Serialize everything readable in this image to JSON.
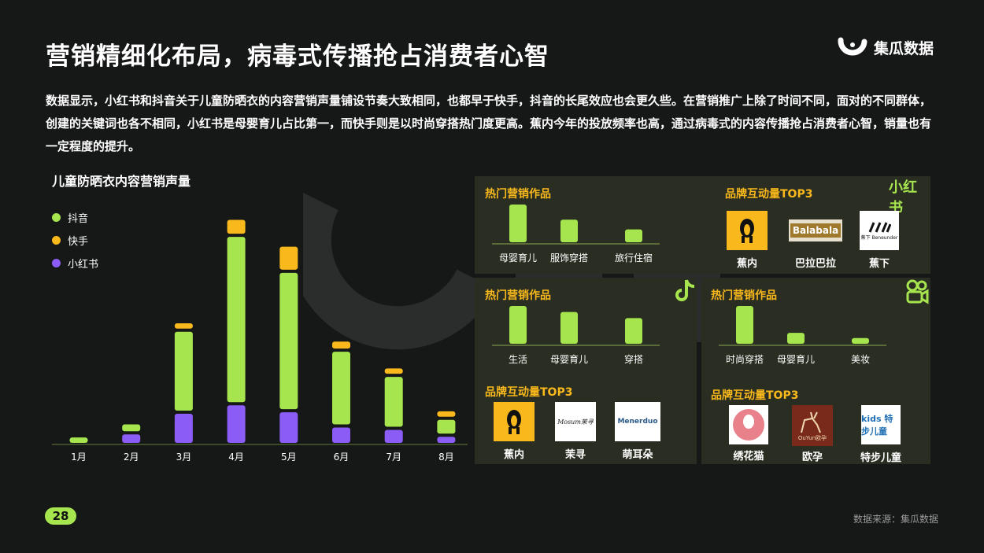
{
  "title": "营销精细化布局，病毒式传播抢占消费者心智",
  "logo": {
    "text": "集瓜数据"
  },
  "description": "数据显示，小红书和抖音关于儿童防晒衣的内容营销声量铺设节奏大致相同，也都早于快手，抖音的长尾效应也会更久些。在营销推广上除了时间不同，面对的不同群体，创建的关键词也各不相同，小红书是母婴育儿占比第一，而快手则是以时尚穿搭热门度更高。蕉内今年的投放频率也高，通过病毒式的内容传播抢占消费者心智，销量也有一定程度的提升。",
  "colors": {
    "douyin": "#a6e54e",
    "kuaishou": "#f9b81c",
    "xiaohongshu": "#8b5cf6",
    "panel": "#2a2e22",
    "accent": "#f9b81c"
  },
  "chart_data": [
    {
      "type": "bar",
      "stacked": true,
      "title": "儿童防晒衣内容营销声量",
      "categories": [
        "1月",
        "2月",
        "3月",
        "4月",
        "5月",
        "6月",
        "7月",
        "8月"
      ],
      "series": [
        {
          "name": "小红书",
          "values": [
            0,
            11,
            38,
            49,
            40,
            20,
            17,
            8
          ]
        },
        {
          "name": "抖音",
          "values": [
            7,
            9,
            103,
            216,
            178,
            95,
            65,
            18
          ]
        },
        {
          "name": "快手",
          "values": [
            0,
            0,
            7,
            18,
            30,
            9,
            7,
            7
          ]
        }
      ],
      "ylim": [
        0,
        300
      ],
      "legend": "top-left"
    },
    {
      "type": "bar",
      "title": "热门营销作品",
      "platform": "小红书",
      "categories": [
        "母婴育儿",
        "服饰穿搭",
        "旅行住宿"
      ],
      "values": [
        100,
        60,
        34
      ]
    },
    {
      "type": "bar",
      "title": "热门营销作品",
      "platform": "抖音",
      "categories": [
        "生活",
        "母婴育儿",
        "穿搭"
      ],
      "values": [
        100,
        84,
        68
      ]
    },
    {
      "type": "bar",
      "title": "热门营销作品",
      "platform": "快手",
      "categories": [
        "时尚穿搭",
        "母婴育儿",
        "美妆"
      ],
      "values": [
        100,
        29,
        15
      ]
    }
  ],
  "panels": {
    "xhs": {
      "hot_title": "热门营销作品",
      "brand_title": "品牌互动量TOP3",
      "platform_label": "小红书",
      "brands": [
        "蕉内",
        "巴拉巴拉",
        "蕉下"
      ],
      "brand_logo_text": [
        "",
        "Balabala",
        "蕉下 Beneunder"
      ]
    },
    "douyin": {
      "hot_title": "热门营销作品",
      "brand_title": "品牌互动量TOP3",
      "brands": [
        "蕉内",
        "茉寻",
        "萌耳朵"
      ],
      "brand_logo_text": [
        "",
        "Mosum茉寻",
        "Menerduo"
      ]
    },
    "kuaishou": {
      "hot_title": "热门营销作品",
      "brand_title": "品牌互动量TOP3",
      "brands": [
        "绣花猫",
        "欧孕",
        "特步儿童"
      ],
      "brand_logo_text": [
        "绣花猫",
        "OuYun欧孕",
        "kids 特步儿童"
      ]
    }
  },
  "page_number": "28",
  "source": "数据来源：集瓜数据",
  "icons": {
    "douyin": "tiktok-icon",
    "kuaishou": "kuaishou-icon",
    "logo": "jigua-logo-icon"
  }
}
